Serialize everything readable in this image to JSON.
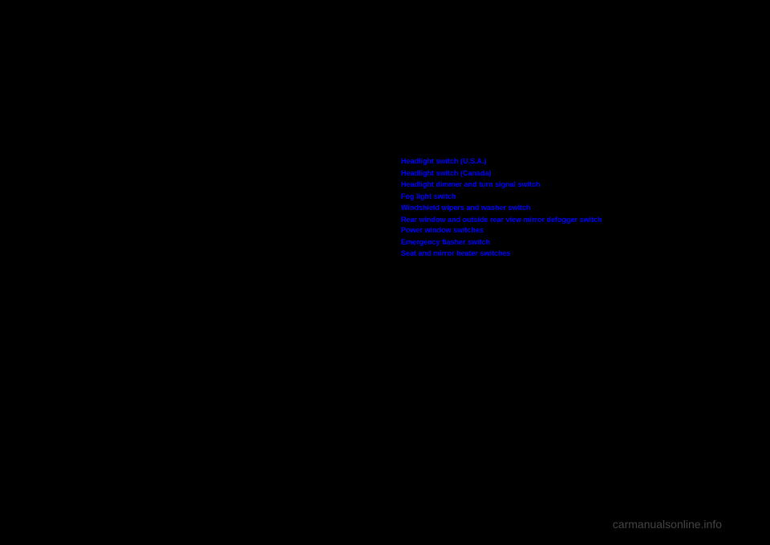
{
  "links": [
    {
      "label": "Headlight switch (U.S.A.)"
    },
    {
      "label": "Headlight switch (Canada)"
    },
    {
      "label": "Headlight dimmer and turn signal switch"
    },
    {
      "label": "Fog light switch"
    },
    {
      "label": "Windshield wipers and washer switch"
    },
    {
      "label": "Rear window and outside rear view mirror defogger switch"
    },
    {
      "label": "Power window switches"
    },
    {
      "label": "Emergency flasher switch"
    },
    {
      "label": "Seat and mirror heater switches"
    }
  ],
  "watermark": "carmanualsonline.info",
  "colors": {
    "background": "#000000",
    "link_color": "#0000ff",
    "watermark_color": "#888888"
  },
  "typography": {
    "link_fontsize": 9,
    "link_fontweight": "bold",
    "watermark_fontsize": 14
  }
}
